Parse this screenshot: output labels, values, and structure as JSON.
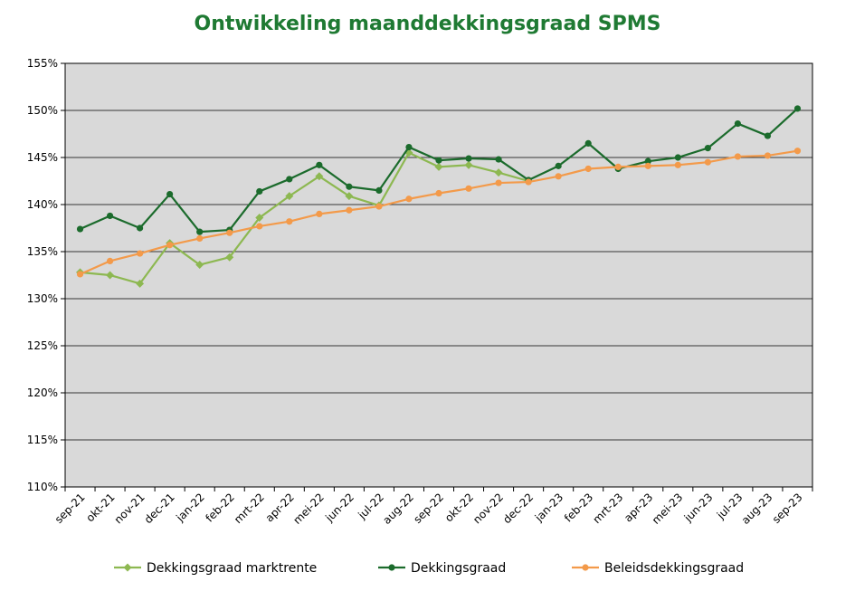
{
  "chart_data": {
    "type": "line",
    "title": "Ontwikkeling maanddekkingsgraad SPMS",
    "xlabel": "",
    "ylabel": "",
    "ylim": [
      110,
      155
    ],
    "yticks": [
      "110%",
      "115%",
      "120%",
      "125%",
      "130%",
      "135%",
      "140%",
      "145%",
      "150%",
      "155%"
    ],
    "grid": true,
    "legend": "bottom",
    "categories": [
      "sep-21",
      "okt-21",
      "nov-21",
      "dec-21",
      "jan-22",
      "feb-22",
      "mrt-22",
      "apr-22",
      "mei-22",
      "jun-22",
      "jul-22",
      "aug-22",
      "sep-22",
      "okt-22",
      "nov-22",
      "dec-22",
      "jan-23",
      "feb-23",
      "mrt-23",
      "apr-23",
      "mei-23",
      "jun-23",
      "jul-23",
      "aug-23",
      "sep-23"
    ],
    "series": [
      {
        "name": "Dekkingsgraad marktrente",
        "color": "#8db851",
        "marker": "diamond",
        "values": [
          132.8,
          132.5,
          131.6,
          135.9,
          133.6,
          134.4,
          138.6,
          140.9,
          143.0,
          140.9,
          139.9,
          145.5,
          144.0,
          144.2,
          143.4,
          142.5,
          null,
          null,
          null,
          null,
          null,
          null,
          null,
          null,
          null
        ]
      },
      {
        "name": "Dekkingsgraad",
        "color": "#1b6b2c",
        "marker": "circle",
        "values": [
          137.4,
          138.8,
          137.5,
          141.1,
          137.1,
          137.3,
          141.4,
          142.7,
          144.2,
          141.9,
          141.5,
          146.1,
          144.7,
          144.9,
          144.8,
          142.6,
          144.1,
          146.5,
          143.8,
          144.6,
          145.0,
          146.0,
          148.6,
          147.3,
          150.2
        ]
      },
      {
        "name": "Beleidsdekkingsgraad",
        "color": "#f39a4a",
        "marker": "circle",
        "values": [
          132.6,
          134.0,
          134.8,
          135.7,
          136.4,
          137.0,
          137.7,
          138.2,
          139.0,
          139.4,
          139.8,
          140.6,
          141.2,
          141.7,
          142.3,
          142.4,
          143.0,
          143.8,
          144.0,
          144.1,
          144.2,
          144.5,
          145.1,
          145.2,
          145.7
        ]
      }
    ]
  },
  "colors": {
    "title": "#1f7a33",
    "plot_background": "#d9d9d9",
    "gridline": "#000000"
  }
}
